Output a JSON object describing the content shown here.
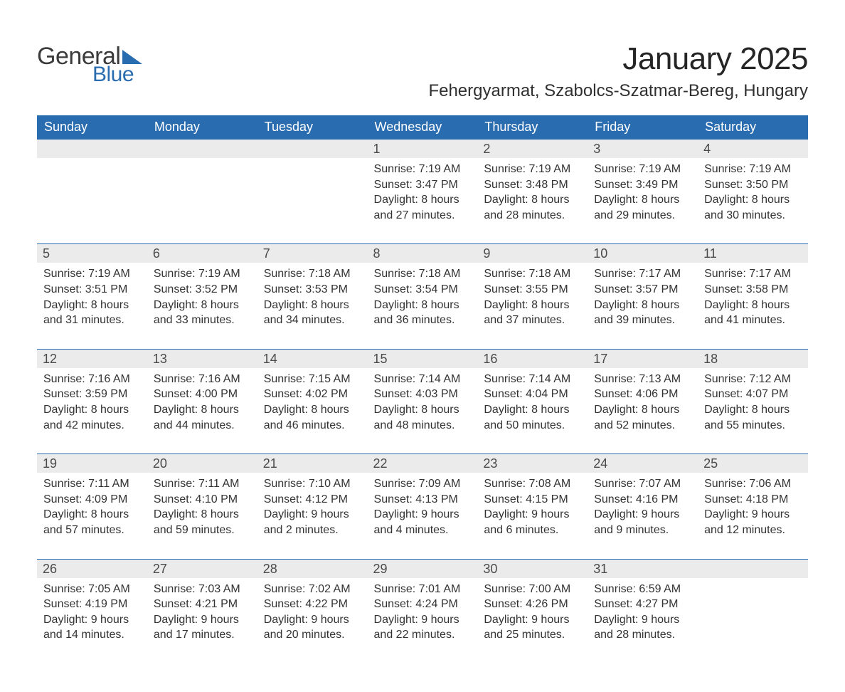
{
  "colors": {
    "header_bg": "#2a6cb0",
    "header_text": "#ffffff",
    "daynum_bg": "#ebebeb",
    "body_text": "#333333",
    "logo_gray": "#3a3a3a",
    "logo_blue": "#2a6cb0",
    "page_bg": "#ffffff",
    "rule": "#2a6cb0"
  },
  "typography": {
    "title_fontsize": 44,
    "location_fontsize": 24,
    "header_fontsize": 18,
    "daynum_fontsize": 18,
    "body_fontsize": 16,
    "font_family": "Arial, Helvetica, sans-serif"
  },
  "logo": {
    "word1": "General",
    "word2": "Blue"
  },
  "title": "January 2025",
  "location": "Fehergyarmat, Szabolcs-Szatmar-Bereg, Hungary",
  "day_headers": [
    "Sunday",
    "Monday",
    "Tuesday",
    "Wednesday",
    "Thursday",
    "Friday",
    "Saturday"
  ],
  "weeks": [
    [
      null,
      null,
      null,
      {
        "num": "1",
        "sunrise": "Sunrise: 7:19 AM",
        "sunset": "Sunset: 3:47 PM",
        "daylight1": "Daylight: 8 hours",
        "daylight2": "and 27 minutes."
      },
      {
        "num": "2",
        "sunrise": "Sunrise: 7:19 AM",
        "sunset": "Sunset: 3:48 PM",
        "daylight1": "Daylight: 8 hours",
        "daylight2": "and 28 minutes."
      },
      {
        "num": "3",
        "sunrise": "Sunrise: 7:19 AM",
        "sunset": "Sunset: 3:49 PM",
        "daylight1": "Daylight: 8 hours",
        "daylight2": "and 29 minutes."
      },
      {
        "num": "4",
        "sunrise": "Sunrise: 7:19 AM",
        "sunset": "Sunset: 3:50 PM",
        "daylight1": "Daylight: 8 hours",
        "daylight2": "and 30 minutes."
      }
    ],
    [
      {
        "num": "5",
        "sunrise": "Sunrise: 7:19 AM",
        "sunset": "Sunset: 3:51 PM",
        "daylight1": "Daylight: 8 hours",
        "daylight2": "and 31 minutes."
      },
      {
        "num": "6",
        "sunrise": "Sunrise: 7:19 AM",
        "sunset": "Sunset: 3:52 PM",
        "daylight1": "Daylight: 8 hours",
        "daylight2": "and 33 minutes."
      },
      {
        "num": "7",
        "sunrise": "Sunrise: 7:18 AM",
        "sunset": "Sunset: 3:53 PM",
        "daylight1": "Daylight: 8 hours",
        "daylight2": "and 34 minutes."
      },
      {
        "num": "8",
        "sunrise": "Sunrise: 7:18 AM",
        "sunset": "Sunset: 3:54 PM",
        "daylight1": "Daylight: 8 hours",
        "daylight2": "and 36 minutes."
      },
      {
        "num": "9",
        "sunrise": "Sunrise: 7:18 AM",
        "sunset": "Sunset: 3:55 PM",
        "daylight1": "Daylight: 8 hours",
        "daylight2": "and 37 minutes."
      },
      {
        "num": "10",
        "sunrise": "Sunrise: 7:17 AM",
        "sunset": "Sunset: 3:57 PM",
        "daylight1": "Daylight: 8 hours",
        "daylight2": "and 39 minutes."
      },
      {
        "num": "11",
        "sunrise": "Sunrise: 7:17 AM",
        "sunset": "Sunset: 3:58 PM",
        "daylight1": "Daylight: 8 hours",
        "daylight2": "and 41 minutes."
      }
    ],
    [
      {
        "num": "12",
        "sunrise": "Sunrise: 7:16 AM",
        "sunset": "Sunset: 3:59 PM",
        "daylight1": "Daylight: 8 hours",
        "daylight2": "and 42 minutes."
      },
      {
        "num": "13",
        "sunrise": "Sunrise: 7:16 AM",
        "sunset": "Sunset: 4:00 PM",
        "daylight1": "Daylight: 8 hours",
        "daylight2": "and 44 minutes."
      },
      {
        "num": "14",
        "sunrise": "Sunrise: 7:15 AM",
        "sunset": "Sunset: 4:02 PM",
        "daylight1": "Daylight: 8 hours",
        "daylight2": "and 46 minutes."
      },
      {
        "num": "15",
        "sunrise": "Sunrise: 7:14 AM",
        "sunset": "Sunset: 4:03 PM",
        "daylight1": "Daylight: 8 hours",
        "daylight2": "and 48 minutes."
      },
      {
        "num": "16",
        "sunrise": "Sunrise: 7:14 AM",
        "sunset": "Sunset: 4:04 PM",
        "daylight1": "Daylight: 8 hours",
        "daylight2": "and 50 minutes."
      },
      {
        "num": "17",
        "sunrise": "Sunrise: 7:13 AM",
        "sunset": "Sunset: 4:06 PM",
        "daylight1": "Daylight: 8 hours",
        "daylight2": "and 52 minutes."
      },
      {
        "num": "18",
        "sunrise": "Sunrise: 7:12 AM",
        "sunset": "Sunset: 4:07 PM",
        "daylight1": "Daylight: 8 hours",
        "daylight2": "and 55 minutes."
      }
    ],
    [
      {
        "num": "19",
        "sunrise": "Sunrise: 7:11 AM",
        "sunset": "Sunset: 4:09 PM",
        "daylight1": "Daylight: 8 hours",
        "daylight2": "and 57 minutes."
      },
      {
        "num": "20",
        "sunrise": "Sunrise: 7:11 AM",
        "sunset": "Sunset: 4:10 PM",
        "daylight1": "Daylight: 8 hours",
        "daylight2": "and 59 minutes."
      },
      {
        "num": "21",
        "sunrise": "Sunrise: 7:10 AM",
        "sunset": "Sunset: 4:12 PM",
        "daylight1": "Daylight: 9 hours",
        "daylight2": "and 2 minutes."
      },
      {
        "num": "22",
        "sunrise": "Sunrise: 7:09 AM",
        "sunset": "Sunset: 4:13 PM",
        "daylight1": "Daylight: 9 hours",
        "daylight2": "and 4 minutes."
      },
      {
        "num": "23",
        "sunrise": "Sunrise: 7:08 AM",
        "sunset": "Sunset: 4:15 PM",
        "daylight1": "Daylight: 9 hours",
        "daylight2": "and 6 minutes."
      },
      {
        "num": "24",
        "sunrise": "Sunrise: 7:07 AM",
        "sunset": "Sunset: 4:16 PM",
        "daylight1": "Daylight: 9 hours",
        "daylight2": "and 9 minutes."
      },
      {
        "num": "25",
        "sunrise": "Sunrise: 7:06 AM",
        "sunset": "Sunset: 4:18 PM",
        "daylight1": "Daylight: 9 hours",
        "daylight2": "and 12 minutes."
      }
    ],
    [
      {
        "num": "26",
        "sunrise": "Sunrise: 7:05 AM",
        "sunset": "Sunset: 4:19 PM",
        "daylight1": "Daylight: 9 hours",
        "daylight2": "and 14 minutes."
      },
      {
        "num": "27",
        "sunrise": "Sunrise: 7:03 AM",
        "sunset": "Sunset: 4:21 PM",
        "daylight1": "Daylight: 9 hours",
        "daylight2": "and 17 minutes."
      },
      {
        "num": "28",
        "sunrise": "Sunrise: 7:02 AM",
        "sunset": "Sunset: 4:22 PM",
        "daylight1": "Daylight: 9 hours",
        "daylight2": "and 20 minutes."
      },
      {
        "num": "29",
        "sunrise": "Sunrise: 7:01 AM",
        "sunset": "Sunset: 4:24 PM",
        "daylight1": "Daylight: 9 hours",
        "daylight2": "and 22 minutes."
      },
      {
        "num": "30",
        "sunrise": "Sunrise: 7:00 AM",
        "sunset": "Sunset: 4:26 PM",
        "daylight1": "Daylight: 9 hours",
        "daylight2": "and 25 minutes."
      },
      {
        "num": "31",
        "sunrise": "Sunrise: 6:59 AM",
        "sunset": "Sunset: 4:27 PM",
        "daylight1": "Daylight: 9 hours",
        "daylight2": "and 28 minutes."
      },
      null
    ]
  ]
}
